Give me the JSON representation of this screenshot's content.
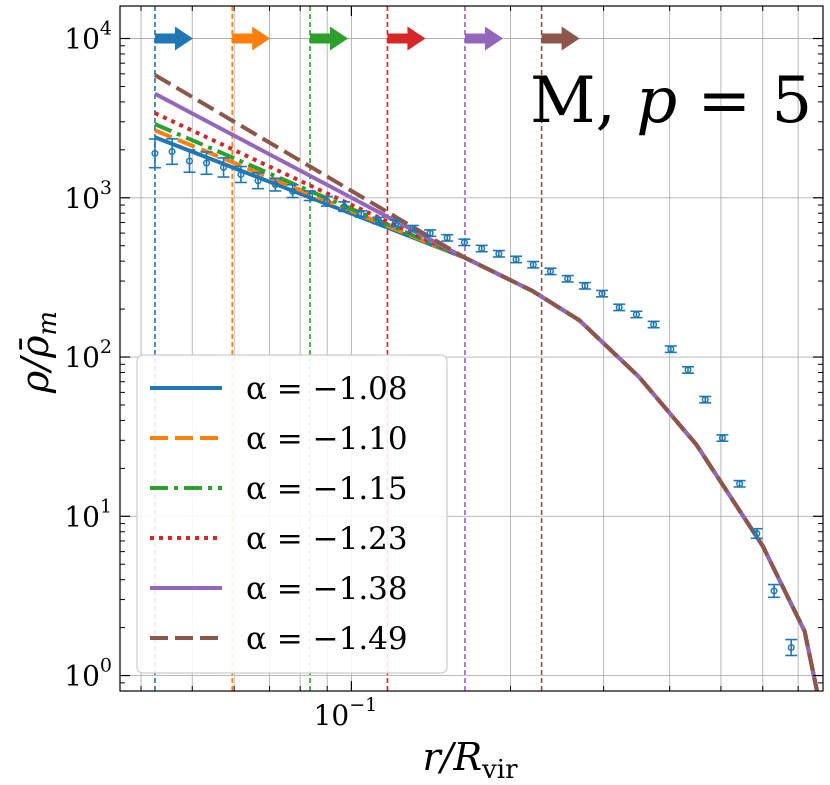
{
  "chart_data": {
    "type": "line",
    "title": "",
    "xlabel": "r/R_vir",
    "ylabel": "ρ/ρ̄_m",
    "x_scale": "log",
    "y_scale": "log",
    "xlim": [
      0.0365,
      0.78
    ],
    "ylim": [
      0.8,
      16000
    ],
    "grid": true,
    "legend_position": "lower-left",
    "x_tick_labels": [
      {
        "value": 0.1,
        "base": "10",
        "exp": "−1"
      }
    ],
    "y_tick_labels": [
      {
        "value": 1,
        "base": "10",
        "exp": "0"
      },
      {
        "value": 10,
        "base": "10",
        "exp": "1"
      },
      {
        "value": 100,
        "base": "10",
        "exp": "2"
      },
      {
        "value": 1000,
        "base": "10",
        "exp": "3"
      },
      {
        "value": 10000,
        "base": "10",
        "exp": "4"
      }
    ],
    "annotation": {
      "prefix": "M, ",
      "variable": "p",
      "suffix": " = 5"
    },
    "vertical_markers": [
      {
        "x": 0.0425,
        "color": "#1f77b4"
      },
      {
        "x": 0.0595,
        "color": "#ff7f0e"
      },
      {
        "x": 0.0835,
        "color": "#2ca02c"
      },
      {
        "x": 0.117,
        "color": "#d62728"
      },
      {
        "x": 0.164,
        "color": "#9467bd"
      },
      {
        "x": 0.229,
        "color": "#8c564b"
      }
    ],
    "arrow_y": 10000,
    "series": [
      {
        "name": "α = −1.08",
        "color": "#1f77b4",
        "dash": "solid",
        "x": [
          0.0425,
          0.164,
          0.22,
          0.27,
          0.35,
          0.45,
          0.6,
          0.72,
          0.76
        ],
        "y": [
          2400,
          420,
          260,
          170,
          75,
          28,
          6.5,
          1.9,
          0.8
        ]
      },
      {
        "name": "α = −1.10",
        "color": "#ff7f0e",
        "dash": "dashed",
        "x": [
          0.0425,
          0.164,
          0.22,
          0.27,
          0.35,
          0.45,
          0.6,
          0.72,
          0.76
        ],
        "y": [
          2650,
          420,
          260,
          170,
          75,
          28,
          6.5,
          1.9,
          0.8
        ]
      },
      {
        "name": "α = −1.15",
        "color": "#2ca02c",
        "dash": "dashdot",
        "x": [
          0.0425,
          0.164,
          0.22,
          0.27,
          0.35,
          0.45,
          0.6,
          0.72,
          0.76
        ],
        "y": [
          2900,
          420,
          260,
          170,
          75,
          28,
          6.5,
          1.9,
          0.8
        ]
      },
      {
        "name": "α = −1.23",
        "color": "#d62728",
        "dash": "dotted",
        "x": [
          0.0425,
          0.164,
          0.22,
          0.27,
          0.35,
          0.45,
          0.6,
          0.72,
          0.76
        ],
        "y": [
          3400,
          420,
          260,
          170,
          75,
          28,
          6.5,
          1.9,
          0.8
        ]
      },
      {
        "name": "α = −1.38",
        "color": "#9467bd",
        "dash": "solid",
        "x": [
          0.0425,
          0.164,
          0.22,
          0.27,
          0.35,
          0.45,
          0.6,
          0.72,
          0.76
        ],
        "y": [
          4500,
          420,
          260,
          170,
          75,
          28,
          6.5,
          1.9,
          0.8
        ]
      },
      {
        "name": "α = −1.49",
        "color": "#8c564b",
        "dash": "dashed",
        "x": [
          0.0425,
          0.164,
          0.22,
          0.27,
          0.35,
          0.45,
          0.6,
          0.72,
          0.76
        ],
        "y": [
          5900,
          420,
          260,
          170,
          75,
          28,
          6.5,
          1.9,
          0.8
        ]
      }
    ],
    "data_points": {
      "color": "#1f77b4",
      "x": [
        0.0425,
        0.0458,
        0.0494,
        0.0532,
        0.0573,
        0.0618,
        0.0666,
        0.0718,
        0.0774,
        0.0834,
        0.0899,
        0.0969,
        0.1044,
        0.1125,
        0.1213,
        0.1307,
        0.1409,
        0.1518,
        0.1636,
        0.1764,
        0.1901,
        0.2049,
        0.2208,
        0.238,
        0.2565,
        0.2765,
        0.298,
        0.3211,
        0.3461,
        0.373,
        0.402,
        0.4333,
        0.467,
        0.5033,
        0.5425,
        0.5847,
        0.6302,
        0.6792
      ],
      "y": [
        1900,
        1950,
        1700,
        1650,
        1550,
        1400,
        1280,
        1210,
        1100,
        1030,
        950,
        880,
        790,
        720,
        690,
        640,
        600,
        560,
        525,
        480,
        445,
        410,
        380,
        345,
        310,
        280,
        250,
        205,
        185,
        160,
        112,
        83,
        54,
        31,
        16,
        7.8,
        3.4,
        1.5
      ],
      "err": [
        0.09,
        0.08,
        0.07,
        0.07,
        0.06,
        0.05,
        0.05,
        0.04,
        0.04,
        0.03,
        0.03,
        0.03,
        0.02,
        0.02,
        0.02,
        0.02,
        0.02,
        0.02,
        0.02,
        0.02,
        0.02,
        0.02,
        0.02,
        0.02,
        0.02,
        0.02,
        0.02,
        0.02,
        0.02,
        0.02,
        0.02,
        0.02,
        0.02,
        0.02,
        0.02,
        0.03,
        0.04,
        0.05
      ]
    }
  }
}
